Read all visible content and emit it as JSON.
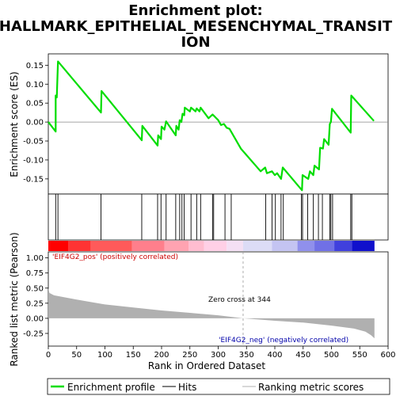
{
  "chart_data": {
    "type": "line",
    "title_lines": [
      "Enrichment plot:",
      "HALLMARK_EPITHELIAL_MESENCHYMAL_TRANSIT",
      "ION"
    ],
    "xlabel": "Rank in Ordered Dataset",
    "xlim": [
      0,
      600
    ],
    "x_ticks": [
      0,
      50,
      100,
      150,
      200,
      250,
      300,
      350,
      400,
      450,
      500,
      550,
      600
    ],
    "es_panel": {
      "ylabel": "Enrichment score (ES)",
      "ylim": [
        -0.19,
        0.18
      ],
      "y_ticks": [
        0.15,
        0.1,
        0.05,
        0.0,
        -0.05,
        -0.1,
        -0.15
      ],
      "y_tick_labels": [
        "0.15",
        "0.10",
        "0.05",
        "0.00",
        "-0.05",
        "-0.10",
        "-0.15"
      ],
      "line_color": "#00dd00",
      "curve": [
        [
          0,
          0.0
        ],
        [
          13,
          -0.025
        ],
        [
          13,
          0.07
        ],
        [
          15,
          0.065
        ],
        [
          17,
          0.16
        ],
        [
          93,
          0.025
        ],
        [
          94,
          0.082
        ],
        [
          165,
          -0.048
        ],
        [
          166,
          -0.01
        ],
        [
          193,
          -0.062
        ],
        [
          194,
          -0.035
        ],
        [
          199,
          -0.045
        ],
        [
          200,
          -0.012
        ],
        [
          205,
          -0.02
        ],
        [
          208,
          0.002
        ],
        [
          225,
          -0.035
        ],
        [
          226,
          -0.01
        ],
        [
          230,
          -0.02
        ],
        [
          232,
          0.005
        ],
        [
          235,
          0.0
        ],
        [
          237,
          0.022
        ],
        [
          240,
          0.018
        ],
        [
          241,
          0.038
        ],
        [
          250,
          0.028
        ],
        [
          252,
          0.038
        ],
        [
          260,
          0.028
        ],
        [
          262,
          0.036
        ],
        [
          267,
          0.028
        ],
        [
          269,
          0.038
        ],
        [
          283,
          0.01
        ],
        [
          290,
          0.02
        ],
        [
          300,
          0.005
        ],
        [
          305,
          -0.008
        ],
        [
          310,
          -0.005
        ],
        [
          315,
          -0.015
        ],
        [
          320,
          -0.018
        ],
        [
          340,
          -0.07
        ],
        [
          375,
          -0.13
        ],
        [
          383,
          -0.12
        ],
        [
          386,
          -0.135
        ],
        [
          395,
          -0.13
        ],
        [
          400,
          -0.14
        ],
        [
          404,
          -0.135
        ],
        [
          411,
          -0.15
        ],
        [
          414,
          -0.12
        ],
        [
          448,
          -0.18
        ],
        [
          449,
          -0.14
        ],
        [
          459,
          -0.15
        ],
        [
          462,
          -0.13
        ],
        [
          468,
          -0.14
        ],
        [
          470,
          -0.115
        ],
        [
          478,
          -0.125
        ],
        [
          480,
          -0.068
        ],
        [
          485,
          -0.07
        ],
        [
          487,
          -0.045
        ],
        [
          495,
          -0.06
        ],
        [
          497,
          -0.005
        ],
        [
          499,
          0.0
        ],
        [
          501,
          0.035
        ],
        [
          534,
          -0.028
        ],
        [
          535,
          0.07
        ],
        [
          575,
          0.003
        ]
      ]
    },
    "hits_panel": {
      "hit_ranks": [
        13,
        17,
        93,
        165,
        193,
        199,
        208,
        225,
        232,
        236,
        240,
        252,
        262,
        269,
        290,
        292,
        312,
        323,
        384,
        395,
        401,
        411,
        415,
        447,
        449,
        458,
        468,
        477,
        484,
        497,
        499,
        502,
        534,
        536
      ]
    },
    "ranking_panel": {
      "ylabel": "Ranked list metric (Pearson)",
      "ylim": [
        -0.46,
        1.1
      ],
      "y_ticks": [
        1.0,
        0.75,
        0.5,
        0.25,
        0.0,
        -0.25
      ],
      "y_tick_labels": [
        "1.00",
        "0.75",
        "0.50",
        "0.25",
        "0.00",
        "-0.25"
      ],
      "fill_color": "#b0b0b0",
      "n_genes": 576,
      "metric_profile": [
        [
          0,
          0.5
        ],
        [
          2,
          0.42
        ],
        [
          10,
          0.38
        ],
        [
          50,
          0.31
        ],
        [
          100,
          0.23
        ],
        [
          150,
          0.18
        ],
        [
          200,
          0.13
        ],
        [
          250,
          0.09
        ],
        [
          300,
          0.05
        ],
        [
          344,
          0.0
        ],
        [
          400,
          -0.04
        ],
        [
          450,
          -0.07
        ],
        [
          500,
          -0.12
        ],
        [
          540,
          -0.17
        ],
        [
          560,
          -0.22
        ],
        [
          570,
          -0.28
        ],
        [
          576,
          -0.33
        ]
      ],
      "pos_label": "'EIF4G2_pos' (positively correlated)",
      "neg_label": "'EIF4G2_neg' (negatively correlated)",
      "zero_cross_label": "Zero cross at 344",
      "zero_cross": 344
    },
    "legend": {
      "placement": "bottom",
      "entries": [
        {
          "label": "Enrichment profile",
          "color": "#00dd00"
        },
        {
          "label": "Hits",
          "color": "#000000"
        },
        {
          "label": "Ranking metric scores",
          "color": "#b0b0b0"
        }
      ]
    }
  }
}
